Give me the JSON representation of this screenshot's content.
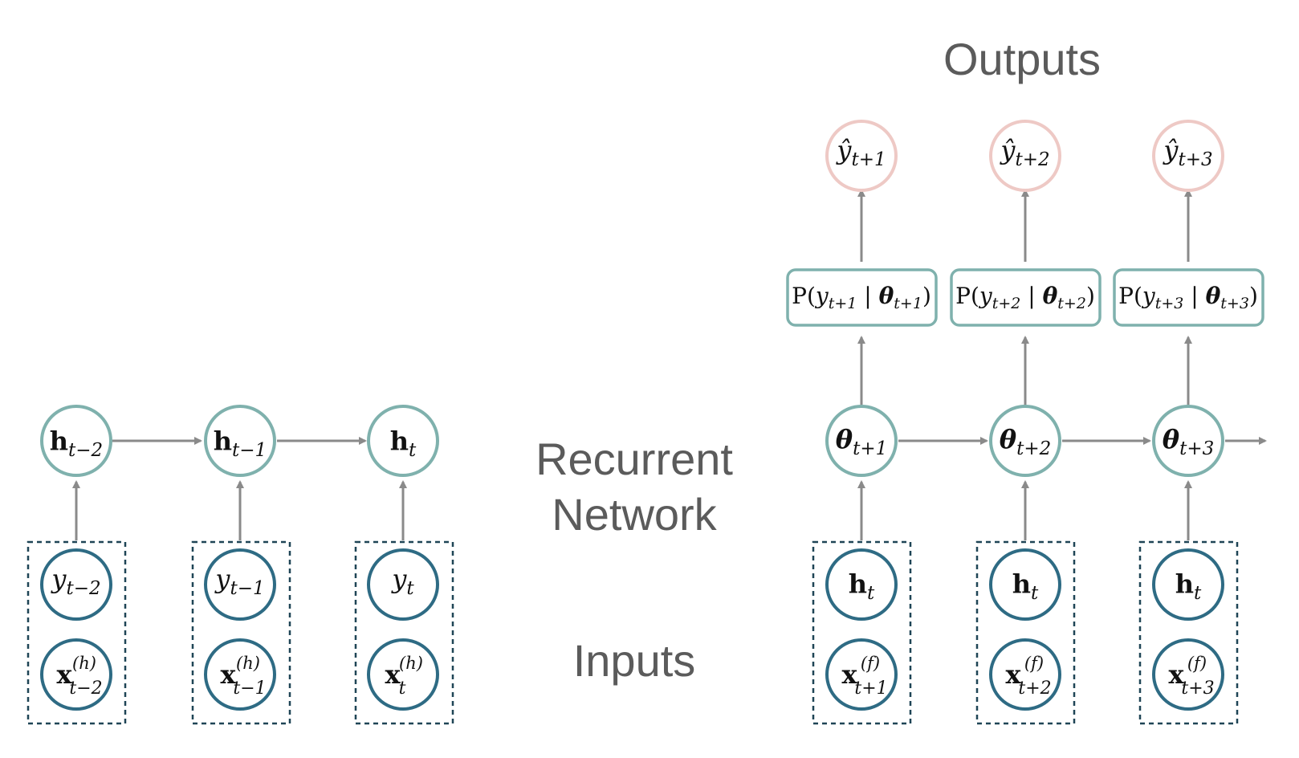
{
  "labels": {
    "outputs": "Outputs",
    "recurrent_line1": "Recurrent",
    "recurrent_line2": "Network",
    "inputs": "Inputs"
  },
  "encoder": {
    "hidden": [
      {
        "sym": "h",
        "sub": "t−2"
      },
      {
        "sym": "h",
        "sub": "t−1"
      },
      {
        "sym": "h",
        "sub": "t"
      }
    ],
    "inputs_y": [
      {
        "sym": "y",
        "sub": "t−2"
      },
      {
        "sym": "y",
        "sub": "t−1"
      },
      {
        "sym": "y",
        "sub": "t"
      }
    ],
    "inputs_x": [
      {
        "sym": "x",
        "sup": "(h)",
        "sub": "t−2"
      },
      {
        "sym": "x",
        "sup": "(h)",
        "sub": "t−1"
      },
      {
        "sym": "x",
        "sup": "(h)",
        "sub": "t"
      }
    ]
  },
  "decoder": {
    "outputs": [
      {
        "sym": "ŷ",
        "sub": "t+1"
      },
      {
        "sym": "ŷ",
        "sub": "t+2"
      },
      {
        "sym": "ŷ",
        "sub": "t+3"
      }
    ],
    "distributions": [
      {
        "prefix": "P(",
        "y": "y",
        "ysub": "t+1",
        "bar": " | ",
        "theta": "θ",
        "thsub": "t+1",
        "close": ")"
      },
      {
        "prefix": "P(",
        "y": "y",
        "ysub": "t+2",
        "bar": " | ",
        "theta": "θ",
        "thsub": "t+2",
        "close": ")"
      },
      {
        "prefix": "P(",
        "y": "y",
        "ysub": "t+3",
        "bar": " | ",
        "theta": "θ",
        "thsub": "t+3",
        "close": ")"
      }
    ],
    "params": [
      {
        "sym": "θ",
        "sub": "t+1"
      },
      {
        "sym": "θ",
        "sub": "t+2"
      },
      {
        "sym": "θ",
        "sub": "t+3"
      }
    ],
    "inputs_h": [
      {
        "sym": "h",
        "sub": "t"
      },
      {
        "sym": "h",
        "sub": "t"
      },
      {
        "sym": "h",
        "sub": "t"
      }
    ],
    "inputs_x": [
      {
        "sym": "x",
        "sup": "(f)",
        "sub": "t+1"
      },
      {
        "sym": "x",
        "sup": "(f)",
        "sub": "t+2"
      },
      {
        "sym": "x",
        "sup": "(f)",
        "sub": "t+3"
      }
    ]
  }
}
